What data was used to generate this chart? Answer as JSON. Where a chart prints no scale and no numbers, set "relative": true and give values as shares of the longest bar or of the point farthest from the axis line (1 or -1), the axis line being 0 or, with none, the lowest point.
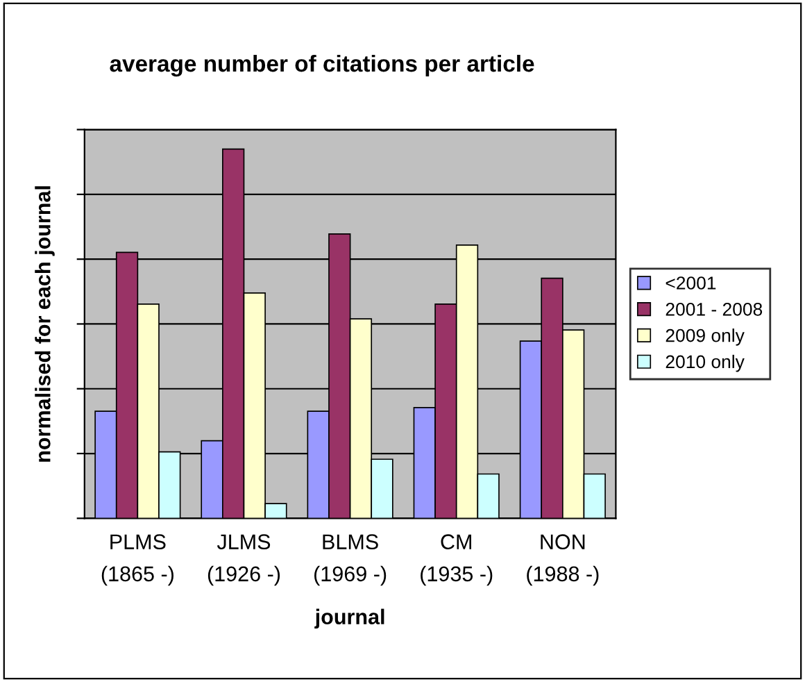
{
  "chart_data": {
    "type": "bar",
    "title": "average number of citations per article",
    "xlabel": "journal",
    "ylabel": "normalised for each journal",
    "relative": true,
    "grid": "y",
    "legend": "right",
    "categories": [
      "PLMS\n(1865 -)",
      "JLMS\n(1926 -)",
      "BLMS\n(1969 -)",
      "CM\n(1935 -)",
      "NON\n(1988 -)"
    ],
    "series": [
      {
        "name": "<2001",
        "color": "#9999ff",
        "values": [
          0.29,
          0.21,
          0.29,
          0.3,
          0.48
        ]
      },
      {
        "name": "2001 - 2008",
        "color": "#993366",
        "values": [
          0.72,
          1,
          0.77,
          0.58,
          0.65
        ]
      },
      {
        "name": "2009 only",
        "color": "#ffffcc",
        "values": [
          0.58,
          0.61,
          0.54,
          0.74,
          0.51
        ]
      },
      {
        "name": "2010 only",
        "color": "#ccffff",
        "values": [
          0.18,
          0.04,
          0.16,
          0.12,
          0.12
        ]
      }
    ]
  }
}
